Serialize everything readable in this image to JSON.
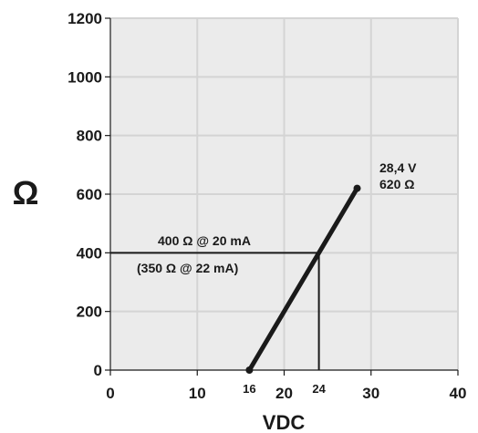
{
  "chart_data": {
    "type": "line",
    "xlabel": "VDC",
    "ylabel": "Ω",
    "xlim": [
      0,
      40
    ],
    "ylim": [
      0,
      1200
    ],
    "grid": true,
    "x_ticks": [
      "0",
      "10",
      "20",
      "30",
      "40"
    ],
    "x_ticks_special": [
      "16",
      "24"
    ],
    "y_ticks": [
      "0",
      "200",
      "400",
      "600",
      "800",
      "1000",
      "1200"
    ],
    "series": [
      {
        "x": [
          16,
          28.4
        ],
        "y": [
          0,
          620
        ]
      }
    ],
    "reference_lines": {
      "x": 24,
      "y": 400
    },
    "annotations": {
      "endpoint_voltage": "28,4 V",
      "endpoint_resistance": "620 Ω",
      "operating_point": "400 Ω @ 20 mA",
      "operating_point_alt": "(350 Ω @ 22 mA)"
    },
    "colors": {
      "grid": "#d4d4d4",
      "plot_bg": "#ebebeb",
      "line": "#1a1a1a"
    }
  }
}
